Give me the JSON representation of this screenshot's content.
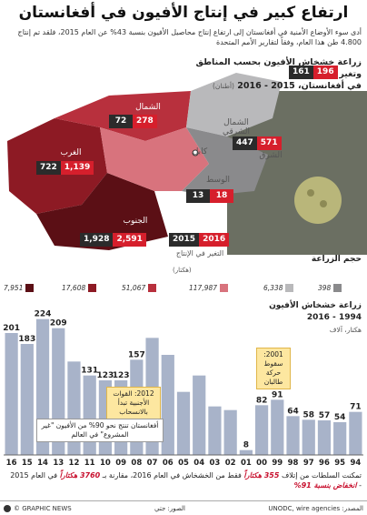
{
  "title": "ارتفاع كبير في إنتاج الأفيون في أفغانستان",
  "intro": "أدى سوء الأوضاع الأمنية في أفغانستان إلى ارتفاع إنتاج محاصيل الأفيون بنسبة 43% عن العام 2015، فلقد تم إنتاج 4.800 طن هذا العام، وفقاً لتقارير الأمم المتحدة",
  "map": {
    "title": "زراعة خشخاش الأفيون بحسب المناطق وتغير الإنتاج",
    "subtitle": "في أفغانستان، 2015 - 2016",
    "unit": "(أطنان)",
    "capital": "كابل",
    "year_2015": "2015",
    "year_2016": "2016",
    "change_label": "التغير في الإنتاج",
    "regions": [
      {
        "name": "الشمال الشرقي",
        "v2015": "161",
        "v2016": "196"
      },
      {
        "name": "الشمال",
        "v2015": "72",
        "v2016": "278"
      },
      {
        "name": "الشرق",
        "v2015": "447",
        "v2016": "571"
      },
      {
        "name": "الغرب",
        "v2015": "722",
        "v2016": "1,139"
      },
      {
        "name": "الوسط",
        "v2015": "13",
        "v2016": "18"
      },
      {
        "name": "الجنوب",
        "v2015": "1,928",
        "v2016": "2,591"
      }
    ],
    "colors": {
      "lvl1": "#5b0f15",
      "lvl2": "#8d1a24",
      "lvl3": "#b8303d",
      "lvl4": "#d8737d",
      "lvl5": "#b9b9bb",
      "lvl6": "#8a8a8c"
    }
  },
  "legend": {
    "title": "حجم الزراعة",
    "unit": "(هكتار)",
    "items": [
      "7,951",
      "17,608",
      "51,067",
      "117,987",
      "6,338",
      "398"
    ]
  },
  "chart": {
    "title": "زراعة خشخاش الأفيون",
    "subtitle": "1994 - 2016",
    "unit": "هكتار، آلاف",
    "bar_color": "#a8b3c9",
    "note_2012": "2012: القوات الأجنبية تبدأ بالانسحاب",
    "note_2001": "2001: سقوط حركة طالبان",
    "note_afg": "أفغانستان تنتج نحو 90% من الأفيون \"غير المشروع\" في العالم"
  },
  "chart_data": {
    "type": "bar",
    "title": "زراعة خشخاش الأفيون",
    "ylabel": "هكتار، آلاف",
    "categories": [
      "16",
      "15",
      "14",
      "13",
      "12",
      "11",
      "10",
      "09",
      "08",
      "07",
      "06",
      "05",
      "04",
      "03",
      "02",
      "01",
      "00",
      "99",
      "98",
      "97",
      "96",
      "95",
      "94"
    ],
    "values": [
      201,
      183,
      224,
      209,
      154,
      131,
      123,
      123,
      157,
      193,
      165,
      104,
      131,
      80,
      74,
      8,
      82,
      91,
      64,
      58,
      57,
      54,
      71
    ],
    "labeled": [
      true,
      true,
      true,
      true,
      false,
      true,
      true,
      true,
      true,
      false,
      false,
      false,
      false,
      false,
      false,
      true,
      true,
      true,
      true,
      true,
      true,
      true,
      true
    ],
    "ylim": [
      0,
      240
    ],
    "grid": false
  },
  "footnote": {
    "text_a": "تمكنت السلطات من إتلاف ",
    "hl1": "355 هكتاراً",
    "text_b": " فقط من الخشخاش في العام 2016، مقارنة بـ ",
    "hl2": "3760 هكتاراً",
    "text_c": " في العام 2015 - ",
    "hl3": "انخفاض بنسبة 91%"
  },
  "footer": {
    "logo": "© GRAPHIC NEWS",
    "photo": "الصور: جتي",
    "source": "المصدر: UNODC, wire agencies"
  }
}
